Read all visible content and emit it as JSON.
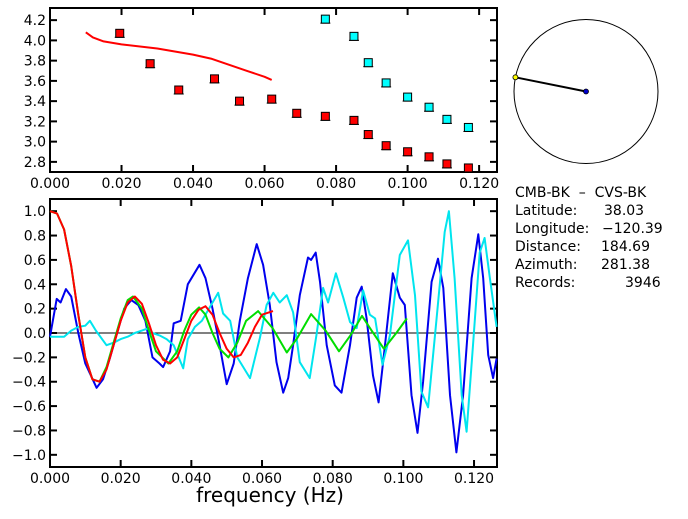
{
  "chart_data": [
    {
      "type": "scatter",
      "xlim": [
        0,
        0.125
      ],
      "ylim": [
        2.7,
        4.32
      ],
      "xticks": [
        0,
        0.02,
        0.04,
        0.06,
        0.08,
        0.1,
        0.12
      ],
      "xtick_labels": [
        "0.000",
        "0.020",
        "0.040",
        "0.060",
        "0.080",
        "0.100",
        "0.120"
      ],
      "yticks": [
        2.8,
        3.0,
        3.2,
        3.4,
        3.6,
        3.8,
        4.0,
        4.2
      ],
      "ytick_labels": [
        "2.8",
        "3.0",
        "3.2",
        "3.4",
        "3.6",
        "3.8",
        "4.0",
        "4.2"
      ],
      "series": [
        {
          "kind": "points",
          "color": "#ff0000",
          "x": [
            0.0195,
            0.028,
            0.036,
            0.046,
            0.053,
            0.062,
            0.069,
            0.077,
            0.085,
            0.089,
            0.094,
            0.1,
            0.106,
            0.111,
            0.117
          ],
          "y": [
            4.07,
            3.77,
            3.51,
            3.62,
            3.4,
            3.42,
            3.28,
            3.25,
            3.21,
            3.07,
            2.96,
            2.9,
            2.85,
            2.78,
            2.74
          ]
        },
        {
          "kind": "points",
          "color": "#00ffff",
          "x": [
            0.077,
            0.085,
            0.089,
            0.094,
            0.1,
            0.106,
            0.111,
            0.117
          ],
          "y": [
            4.21,
            4.04,
            3.78,
            3.58,
            3.44,
            3.34,
            3.22,
            3.14
          ]
        },
        {
          "kind": "line",
          "color": "#ff0000",
          "x": [
            0.01,
            0.012,
            0.015,
            0.02,
            0.03,
            0.04,
            0.045,
            0.05,
            0.055,
            0.06,
            0.062
          ],
          "y": [
            4.08,
            4.03,
            3.99,
            3.96,
            3.92,
            3.86,
            3.82,
            3.76,
            3.7,
            3.64,
            3.61
          ]
        }
      ]
    },
    {
      "type": "line",
      "xlabel": "frequency  (Hz)",
      "xlim": [
        0,
        0.1265
      ],
      "ylim": [
        -1.1,
        1.1
      ],
      "xticks": [
        0,
        0.02,
        0.04,
        0.06,
        0.08,
        0.1,
        0.12
      ],
      "xtick_labels": [
        "0.000",
        "0.020",
        "0.040",
        "0.060",
        "0.080",
        "0.100",
        "0.120"
      ],
      "yticks": [
        -1.0,
        -0.8,
        -0.6,
        -0.4,
        -0.2,
        0.0,
        0.2,
        0.4,
        0.6,
        0.8,
        1.0
      ],
      "ytick_labels": [
        "−1.0",
        "−0.8",
        "−0.6",
        "−0.4",
        "−0.2",
        "0.0",
        "0.2",
        "0.4",
        "0.6",
        "0.8",
        "1.0"
      ],
      "zero_line": true,
      "series": [
        {
          "color": "#0000ee",
          "x": [
            0,
            0.0019,
            0.003,
            0.0045,
            0.006,
            0.008,
            0.01,
            0.0132,
            0.015,
            0.017,
            0.019,
            0.021,
            0.023,
            0.025,
            0.027,
            0.029,
            0.031,
            0.032,
            0.034,
            0.035,
            0.037,
            0.039,
            0.0423,
            0.044,
            0.046,
            0.048,
            0.05,
            0.052,
            0.0537,
            0.056,
            0.0585,
            0.0603,
            0.0622,
            0.0641,
            0.066,
            0.0674,
            0.0688,
            0.0707,
            0.073,
            0.0739,
            0.0752,
            0.0764,
            0.0783,
            0.0806,
            0.0825,
            0.0849,
            0.0868,
            0.0882,
            0.0896,
            0.0914,
            0.093,
            0.0948,
            0.097,
            0.099,
            0.1004,
            0.1023,
            0.104,
            0.1056,
            0.108,
            0.1098,
            0.1113,
            0.1132,
            0.115,
            0.1169,
            0.1193,
            0.1212,
            0.1226,
            0.124,
            0.1254,
            0.1264
          ],
          "y": [
            -0.03,
            0.28,
            0.25,
            0.36,
            0.3,
            0.0,
            -0.25,
            -0.45,
            -0.38,
            -0.2,
            0.0,
            0.2,
            0.27,
            0.23,
            0.1,
            -0.2,
            -0.25,
            -0.28,
            -0.15,
            0.08,
            0.1,
            0.4,
            0.56,
            0.45,
            0.2,
            -0.1,
            -0.42,
            -0.25,
            0.1,
            0.45,
            0.73,
            0.56,
            0.23,
            -0.24,
            -0.49,
            -0.37,
            -0.1,
            0.31,
            0.62,
            0.6,
            0.66,
            0.42,
            -0.1,
            -0.43,
            -0.49,
            -0.1,
            0.29,
            0.38,
            0.12,
            -0.35,
            -0.57,
            -0.1,
            0.49,
            0.29,
            0.23,
            -0.51,
            -0.82,
            -0.4,
            0.42,
            0.61,
            0.37,
            -0.51,
            -0.98,
            -0.51,
            0.45,
            0.81,
            0.45,
            -0.18,
            -0.37,
            -0.21
          ]
        },
        {
          "color": "#00e5ee",
          "x": [
            0,
            0.004,
            0.006,
            0.008,
            0.01,
            0.0113,
            0.013,
            0.016,
            0.018,
            0.02,
            0.022,
            0.024,
            0.026,
            0.028,
            0.029,
            0.031,
            0.033,
            0.035,
            0.0377,
            0.039,
            0.041,
            0.043,
            0.045,
            0.0476,
            0.049,
            0.051,
            0.053,
            0.0566,
            0.0594,
            0.0613,
            0.0632,
            0.065,
            0.067,
            0.0688,
            0.0707,
            0.0735,
            0.0754,
            0.0773,
            0.0787,
            0.0809,
            0.083,
            0.0849,
            0.0868,
            0.0886,
            0.0905,
            0.092,
            0.0941,
            0.0962,
            0.099,
            0.1013,
            0.1033,
            0.1051,
            0.107,
            0.1094,
            0.1117,
            0.1129,
            0.1145,
            0.1165,
            0.1179,
            0.1197,
            0.1216,
            0.123,
            0.1245,
            0.1264
          ],
          "y": [
            -0.03,
            -0.03,
            0.02,
            0.05,
            0.06,
            0.1,
            0.02,
            -0.1,
            -0.08,
            -0.05,
            -0.03,
            0.0,
            0.02,
            0.04,
            0.0,
            -0.02,
            -0.05,
            -0.1,
            -0.29,
            -0.05,
            0.05,
            0.1,
            0.2,
            0.33,
            0.16,
            0.1,
            -0.2,
            -0.37,
            -0.04,
            0.23,
            0.33,
            0.25,
            0.31,
            0.17,
            -0.24,
            -0.37,
            -0.02,
            0.37,
            0.25,
            0.49,
            0.29,
            0.09,
            0.04,
            0.35,
            0.15,
            0.12,
            -0.26,
            -0.02,
            0.64,
            0.76,
            0.31,
            -0.48,
            -0.61,
            0.12,
            0.83,
            1.0,
            0.45,
            -0.51,
            -0.81,
            -0.1,
            0.66,
            0.78,
            0.45,
            0.05
          ]
        },
        {
          "color": "#00dd00",
          "x": [
            0,
            0.002,
            0.004,
            0.006,
            0.008,
            0.01,
            0.012,
            0.014,
            0.016,
            0.018,
            0.02,
            0.022,
            0.0235,
            0.026,
            0.028,
            0.03,
            0.0335,
            0.036,
            0.038,
            0.04,
            0.0422,
            0.044,
            0.046,
            0.048,
            0.0505,
            0.053,
            0.0555,
            0.0589,
            0.063,
            0.067,
            0.07,
            0.0739,
            0.078,
            0.0818,
            0.085,
            0.0883,
            0.091,
            0.0945,
            0.098,
            0.101
          ],
          "y": [
            1.0,
            0.98,
            0.85,
            0.55,
            0.15,
            -0.2,
            -0.38,
            -0.4,
            -0.28,
            -0.08,
            0.12,
            0.27,
            0.3,
            0.2,
            0.02,
            -0.15,
            -0.25,
            -0.15,
            0.02,
            0.15,
            0.21,
            0.15,
            0.0,
            -0.13,
            -0.2,
            -0.08,
            0.1,
            0.18,
            0.04,
            -0.16,
            -0.04,
            0.155,
            0.02,
            -0.15,
            -0.02,
            0.14,
            0.02,
            -0.13,
            0.0,
            0.12
          ]
        },
        {
          "color": "#ff0000",
          "x": [
            0,
            0.002,
            0.004,
            0.006,
            0.008,
            0.01,
            0.012,
            0.014,
            0.016,
            0.018,
            0.02,
            0.022,
            0.024,
            0.026,
            0.028,
            0.03,
            0.032,
            0.034,
            0.036,
            0.038,
            0.04,
            0.042,
            0.044,
            0.046,
            0.048,
            0.05,
            0.052,
            0.054,
            0.056,
            0.058,
            0.06,
            0.0631
          ],
          "y": [
            1.0,
            0.98,
            0.85,
            0.55,
            0.15,
            -0.2,
            -0.38,
            -0.4,
            -0.3,
            -0.1,
            0.1,
            0.25,
            0.3,
            0.24,
            0.08,
            -0.1,
            -0.22,
            -0.25,
            -0.2,
            -0.05,
            0.1,
            0.19,
            0.22,
            0.15,
            0.0,
            -0.13,
            -0.2,
            -0.18,
            -0.08,
            0.05,
            0.15,
            0.18
          ]
        }
      ]
    }
  ],
  "map": {
    "azimuth": 281.38,
    "station_color": "#ffff00",
    "center_color": "#0000cc"
  },
  "info": {
    "pair": "CMB-BK  –  CVS-BK",
    "latitude_label": "Latitude:",
    "latitude": "38.03",
    "longitude_label": "Longitude:",
    "longitude": "−120.39",
    "distance_label": "Distance:",
    "distance": "184.69",
    "azimuth_label": "Azimuth:",
    "azimuth": "281.38",
    "records_label": "Records:",
    "records": "3946"
  }
}
